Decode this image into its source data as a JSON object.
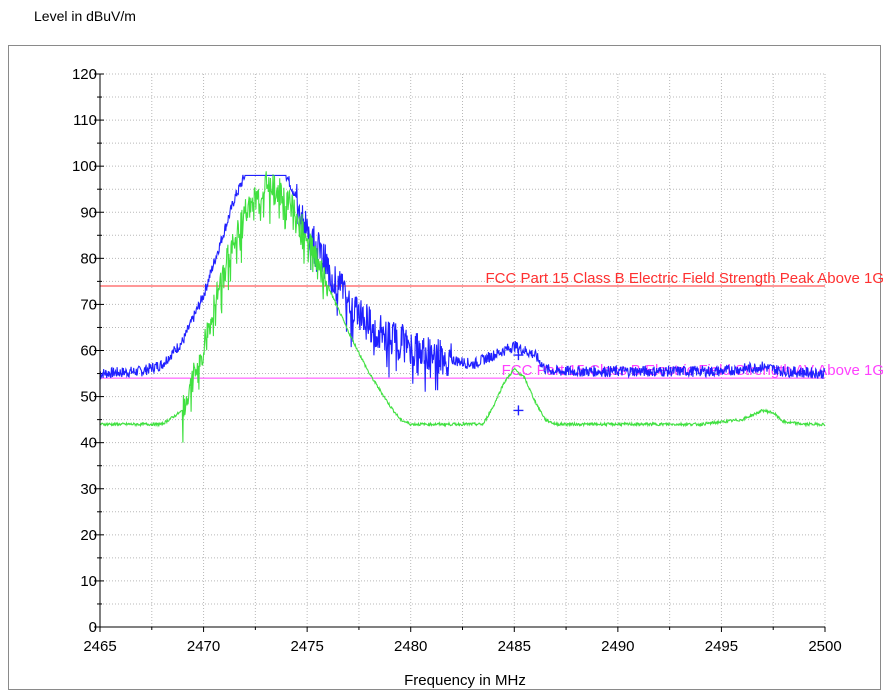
{
  "chart_data": {
    "type": "line",
    "ylabel": "Level in dBuV/m",
    "xlabel": "Frequency in MHz",
    "xlim": [
      2465,
      2500
    ],
    "ylim": [
      0,
      120
    ],
    "xticks": [
      "2465",
      "2470",
      "2475",
      "2480",
      "2485",
      "2490",
      "2495",
      "2500"
    ],
    "yticks": [
      "0",
      "10",
      "20",
      "30",
      "40",
      "50",
      "60",
      "70",
      "80",
      "90",
      "100",
      "110",
      "120"
    ],
    "grid": true,
    "limits": [
      {
        "name": "FCC Part 15 Class B Electric Field Strength Peak Above 1G",
        "value": 74,
        "color": "#ff3030"
      },
      {
        "name": "FCC Part 15 Class B Electric Field Strength AV Above 1G",
        "value": 54,
        "color": "#ff40ff"
      }
    ],
    "series": [
      {
        "color": "#2020ff",
        "x": [
          2465,
          2467,
          2468,
          2469,
          2470,
          2471,
          2471.5,
          2472,
          2474,
          2474.5,
          2475,
          2476,
          2477,
          2478,
          2479,
          2480,
          2481,
          2482,
          2483,
          2484,
          2485,
          2486,
          2486.5,
          2487,
          2490,
          2495,
          2497,
          2498,
          2500
        ],
        "y": [
          55,
          55.5,
          57,
          62,
          72,
          86,
          93,
          98,
          98,
          93,
          87,
          78,
          71,
          66,
          63,
          61,
          59.5,
          58,
          57,
          59,
          61,
          59,
          56,
          55.5,
          55.5,
          55.5,
          56.5,
          55.5,
          55
        ]
      },
      {
        "color": "#40e040",
        "x": [
          2465,
          2468,
          2469,
          2470,
          2471,
          2472,
          2473,
          2474,
          2475,
          2476,
          2477,
          2478,
          2479,
          2479.5,
          2480,
          2481,
          2482,
          2483.5,
          2484,
          2484.5,
          2485,
          2485.5,
          2486,
          2486.5,
          2487,
          2488,
          2494,
          2496,
          2497,
          2497.5,
          2498,
          2499,
          2500
        ],
        "y": [
          44,
          44,
          47,
          61,
          78,
          90,
          96,
          94,
          85,
          74,
          64,
          55,
          48,
          45,
          44,
          44,
          44,
          44,
          48,
          53,
          56,
          54,
          49,
          45,
          44,
          44,
          44,
          45,
          47,
          46.5,
          44.5,
          44,
          44
        ]
      }
    ],
    "markers": [
      {
        "x": 2485.2,
        "y": 59,
        "color": "#2020ff"
      },
      {
        "x": 2485.2,
        "y": 47,
        "color": "#2020ff"
      }
    ]
  }
}
